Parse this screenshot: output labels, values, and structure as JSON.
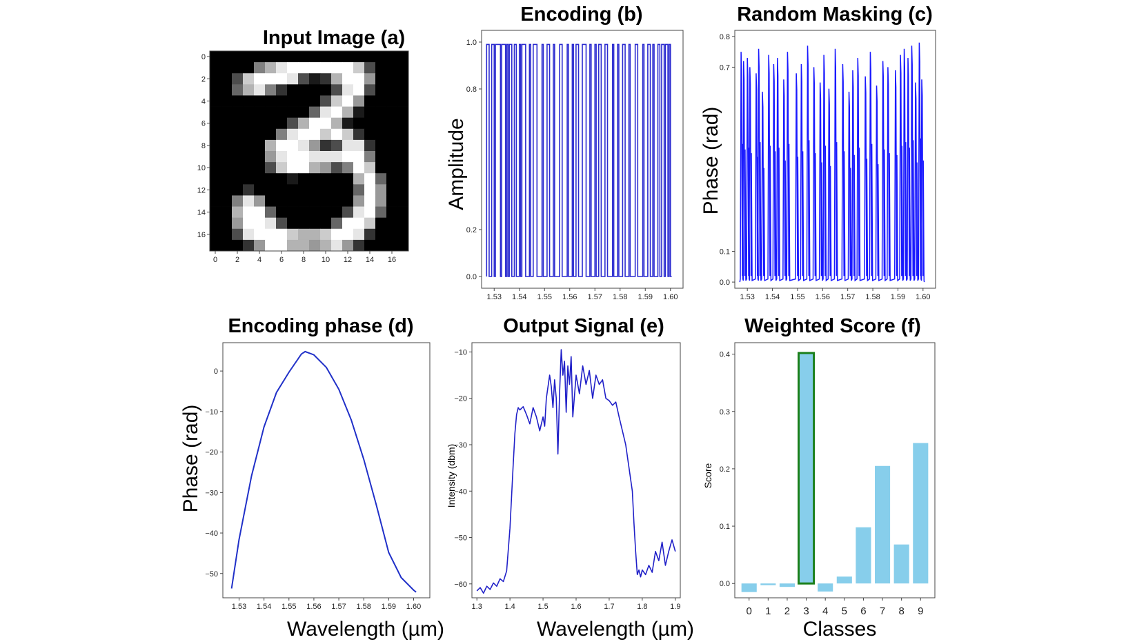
{
  "chart_data": [
    {
      "id": "a",
      "type": "heatmap",
      "title": "Input Image (a)",
      "colormap": "gray",
      "xticks": [
        "0",
        "2",
        "4",
        "6",
        "8",
        "10",
        "12",
        "14",
        "16"
      ],
      "yticks": [
        "0",
        "2",
        "4",
        "6",
        "8",
        "10",
        "12",
        "14",
        "16"
      ],
      "pixels": [
        [
          0,
          0,
          0,
          0,
          0,
          0,
          0,
          0,
          0,
          0,
          0,
          0,
          0,
          0,
          0,
          0,
          0,
          0
        ],
        [
          0,
          0,
          0,
          0,
          0.5,
          0.7,
          0.9,
          1,
          1,
          1,
          1,
          1,
          1,
          0.8,
          0.3,
          0,
          0,
          0
        ],
        [
          0,
          0,
          0.3,
          0.8,
          1,
          1,
          1,
          0.9,
          0.3,
          0.1,
          0.2,
          0.7,
          1,
          1,
          0.6,
          0,
          0,
          0
        ],
        [
          0,
          0,
          0.4,
          0.7,
          0.9,
          0.5,
          0.2,
          0,
          0,
          0,
          0,
          0.3,
          0.9,
          1,
          0.3,
          0,
          0,
          0
        ],
        [
          0,
          0,
          0,
          0,
          0,
          0,
          0,
          0,
          0,
          0,
          0.3,
          0.8,
          1,
          0.6,
          0,
          0,
          0,
          0
        ],
        [
          0,
          0,
          0,
          0,
          0,
          0,
          0,
          0,
          0,
          0.4,
          0.9,
          1,
          0.7,
          0.1,
          0,
          0,
          0,
          0
        ],
        [
          0,
          0,
          0,
          0,
          0,
          0,
          0,
          0.3,
          0.7,
          1,
          1,
          0.7,
          0.1,
          0,
          0,
          0,
          0,
          0
        ],
        [
          0,
          0,
          0,
          0,
          0,
          0,
          0.5,
          0.9,
          1,
          1,
          0.8,
          1,
          0.8,
          0.2,
          0,
          0,
          0,
          0
        ],
        [
          0,
          0,
          0,
          0,
          0,
          0.7,
          1,
          1,
          0.9,
          0.6,
          0.2,
          0.3,
          0.9,
          0.9,
          0.2,
          0,
          0,
          0
        ],
        [
          0,
          0,
          0,
          0,
          0,
          0.6,
          0.9,
          1,
          1,
          0.9,
          0.9,
          0.9,
          1,
          1,
          0.5,
          0,
          0,
          0
        ],
        [
          0,
          0,
          0,
          0,
          0,
          0.3,
          0.8,
          1,
          1,
          0.7,
          0.6,
          0.3,
          0.5,
          1,
          0.8,
          0,
          0,
          0
        ],
        [
          0,
          0,
          0,
          0,
          0,
          0,
          0,
          0.1,
          0,
          0,
          0,
          0,
          0,
          0.7,
          1,
          0.4,
          0,
          0
        ],
        [
          0,
          0,
          0,
          0.2,
          0,
          0,
          0,
          0,
          0,
          0,
          0,
          0,
          0,
          0.4,
          1,
          0.6,
          0,
          0
        ],
        [
          0,
          0,
          0.5,
          0.9,
          0.6,
          0,
          0,
          0,
          0,
          0,
          0,
          0,
          0,
          0.6,
          1,
          0.6,
          0,
          0
        ],
        [
          0,
          0,
          0.7,
          1,
          1,
          0.4,
          0,
          0,
          0,
          0,
          0,
          0,
          0.3,
          0.9,
          1,
          0.4,
          0,
          0
        ],
        [
          0,
          0,
          0.6,
          1,
          1,
          0.9,
          0.3,
          0,
          0,
          0,
          0,
          0.4,
          1,
          1,
          0.8,
          0,
          0,
          0
        ],
        [
          0,
          0,
          0.3,
          0.9,
          1,
          1,
          1,
          0.8,
          0.7,
          0.7,
          0.8,
          1,
          1,
          0.9,
          0.2,
          0,
          0,
          0
        ],
        [
          0,
          0,
          0,
          0.2,
          0.6,
          1,
          1,
          0.7,
          0.7,
          0.6,
          0.7,
          0.9,
          0.6,
          0.2,
          0,
          0,
          0,
          0
        ]
      ]
    },
    {
      "id": "b",
      "type": "line",
      "title": "Encoding (b)",
      "ylabel": "Amplitude",
      "xlim": [
        1.525,
        1.605
      ],
      "ylim": [
        -0.05,
        1.05
      ],
      "xticks": [
        "1.53",
        "1.54",
        "1.55",
        "1.56",
        "1.57",
        "1.58",
        "1.59",
        "1.60"
      ],
      "yticks": [
        "0.0",
        "0.2",
        "0.8",
        "1.0"
      ],
      "color": "#2b2bd0",
      "pulses": [
        [
          1.527,
          1.528
        ],
        [
          1.529,
          1.53
        ],
        [
          1.5305,
          1.5325
        ],
        [
          1.533,
          1.5345
        ],
        [
          1.535,
          1.5355
        ],
        [
          1.536,
          1.537
        ],
        [
          1.538,
          1.5388
        ],
        [
          1.54,
          1.5405
        ],
        [
          1.541,
          1.5425
        ],
        [
          1.544,
          1.5445
        ],
        [
          1.5455,
          1.547
        ],
        [
          1.549,
          1.5495
        ],
        [
          1.551,
          1.552
        ],
        [
          1.5535,
          1.554
        ],
        [
          1.556,
          1.557
        ],
        [
          1.559,
          1.5595
        ],
        [
          1.561,
          1.5615
        ],
        [
          1.5625,
          1.5635
        ],
        [
          1.565,
          1.5665
        ],
        [
          1.568,
          1.5685
        ],
        [
          1.57,
          1.5705
        ],
        [
          1.5715,
          1.5725
        ],
        [
          1.574,
          1.575
        ],
        [
          1.577,
          1.5775
        ],
        [
          1.579,
          1.5795
        ],
        [
          1.581,
          1.582
        ],
        [
          1.5835,
          1.584
        ],
        [
          1.586,
          1.587
        ],
        [
          1.589,
          1.5895
        ],
        [
          1.591,
          1.592
        ],
        [
          1.593,
          1.5935
        ],
        [
          1.595,
          1.5958
        ],
        [
          1.5965,
          1.5975
        ],
        [
          1.598,
          1.599
        ],
        [
          1.5995,
          1.6
        ]
      ]
    },
    {
      "id": "c",
      "type": "line",
      "title": "Random Masking (c)",
      "ylabel": "Phase (rad)",
      "xlim": [
        1.525,
        1.605
      ],
      "ylim": [
        -0.02,
        0.82
      ],
      "xticks": [
        "1.53",
        "1.54",
        "1.55",
        "1.56",
        "1.57",
        "1.58",
        "1.59",
        "1.60"
      ],
      "yticks": [
        "0.0",
        "0.1",
        "0.7",
        "0.8"
      ],
      "color": "#1a1aff",
      "spikes": [
        [
          1.5275,
          0.75
        ],
        [
          1.5285,
          0.72
        ],
        [
          1.53,
          0.73
        ],
        [
          1.531,
          0.7
        ],
        [
          1.5335,
          0.68
        ],
        [
          1.5345,
          0.76
        ],
        [
          1.536,
          0.62
        ],
        [
          1.5385,
          0.74
        ],
        [
          1.5405,
          0.71
        ],
        [
          1.542,
          0.73
        ],
        [
          1.5445,
          0.66
        ],
        [
          1.546,
          0.75
        ],
        [
          1.5495,
          0.68
        ],
        [
          1.5515,
          0.71
        ],
        [
          1.554,
          0.77
        ],
        [
          1.5565,
          0.7
        ],
        [
          1.559,
          0.65
        ],
        [
          1.5605,
          0.74
        ],
        [
          1.5625,
          0.63
        ],
        [
          1.565,
          0.76
        ],
        [
          1.568,
          0.71
        ],
        [
          1.5705,
          0.62
        ],
        [
          1.572,
          0.69
        ],
        [
          1.574,
          0.73
        ],
        [
          1.577,
          0.67
        ],
        [
          1.579,
          0.75
        ],
        [
          1.5815,
          0.64
        ],
        [
          1.584,
          0.72
        ],
        [
          1.586,
          0.7
        ],
        [
          1.589,
          0.69
        ],
        [
          1.591,
          0.74
        ],
        [
          1.5925,
          0.76
        ],
        [
          1.594,
          0.73
        ],
        [
          1.5955,
          0.77
        ],
        [
          1.597,
          0.65
        ],
        [
          1.5985,
          0.78
        ],
        [
          1.5995,
          0.66
        ]
      ]
    },
    {
      "id": "d",
      "type": "line",
      "title": "Encoding phase (d)",
      "ylabel": "Phase (rad)",
      "xlabel": "Wavelength (µm)",
      "xlim": [
        1.5235,
        1.6065
      ],
      "ylim": [
        -56,
        7
      ],
      "xticks": [
        "1.53",
        "1.54",
        "1.55",
        "1.56",
        "1.57",
        "1.58",
        "1.59",
        "1.60"
      ],
      "yticks": [
        "0",
        "−10",
        "−20",
        "−30",
        "−40",
        "−50"
      ],
      "color": "#2030c8",
      "x": [
        1.527,
        1.53,
        1.535,
        1.54,
        1.545,
        1.55,
        1.555,
        1.5565,
        1.56,
        1.565,
        1.57,
        1.575,
        1.58,
        1.585,
        1.59,
        1.595,
        1.6,
        1.601
      ],
      "y": [
        -53.7,
        -41.6,
        -25.9,
        -13.8,
        -5.3,
        -0.3,
        4.2,
        4.8,
        4.0,
        0.9,
        -4.5,
        -12.1,
        -21.8,
        -33.0,
        -44.8,
        -51.0,
        -54.1,
        -54.6
      ]
    },
    {
      "id": "e",
      "type": "line",
      "title": "Output Signal (e)",
      "ylabel": "Intensity (dbm)",
      "xlabel": "Wavelength (µm)",
      "xlim": [
        1.285,
        1.915
      ],
      "ylim": [
        -63,
        -8
      ],
      "xticks": [
        "1.3",
        "1.4",
        "1.5",
        "1.6",
        "1.7",
        "1.8",
        "1.9"
      ],
      "yticks": [
        "−10",
        "−20",
        "−30",
        "−40",
        "−50",
        "−60"
      ],
      "color": "#2020c8",
      "x": [
        1.3,
        1.31,
        1.32,
        1.33,
        1.34,
        1.35,
        1.36,
        1.37,
        1.38,
        1.39,
        1.4,
        1.405,
        1.41,
        1.415,
        1.42,
        1.425,
        1.43,
        1.44,
        1.45,
        1.46,
        1.47,
        1.48,
        1.49,
        1.5,
        1.505,
        1.51,
        1.52,
        1.525,
        1.53,
        1.535,
        1.54,
        1.545,
        1.55,
        1.555,
        1.56,
        1.565,
        1.57,
        1.575,
        1.58,
        1.585,
        1.59,
        1.6,
        1.61,
        1.62,
        1.63,
        1.64,
        1.65,
        1.66,
        1.67,
        1.68,
        1.69,
        1.7,
        1.71,
        1.72,
        1.73,
        1.74,
        1.75,
        1.76,
        1.77,
        1.775,
        1.78,
        1.785,
        1.79,
        1.795,
        1.8,
        1.81,
        1.82,
        1.83,
        1.84,
        1.85,
        1.86,
        1.87,
        1.88,
        1.89,
        1.9
      ],
      "y": [
        -61.5,
        -60.8,
        -62.0,
        -60.5,
        -61.2,
        -59.8,
        -60.5,
        -58.9,
        -59.5,
        -57.2,
        -48.0,
        -41.0,
        -34.0,
        -27.5,
        -23.5,
        -22.0,
        -22.5,
        -21.8,
        -23.5,
        -25.5,
        -22.0,
        -24.0,
        -27.0,
        -24.0,
        -26.0,
        -20.0,
        -15.0,
        -17.5,
        -22.0,
        -16.0,
        -20.0,
        -32.0,
        -19.0,
        -9.5,
        -15.0,
        -12.0,
        -23.0,
        -13.0,
        -17.0,
        -11.0,
        -24.0,
        -15.0,
        -19.0,
        -13.0,
        -17.0,
        -14.0,
        -20.0,
        -15.0,
        -17.0,
        -16.0,
        -20.0,
        -20.5,
        -21.5,
        -20.8,
        -24.0,
        -27.0,
        -30.0,
        -35.0,
        -40.0,
        -47.0,
        -53.0,
        -58.0,
        -57.0,
        -58.5,
        -57.0,
        -58.0,
        -56.0,
        -57.5,
        -53.0,
        -55.0,
        -51.0,
        -56.0,
        -53.0,
        -50.5,
        -53.0
      ]
    },
    {
      "id": "f",
      "type": "bar",
      "title": "Weighted Score (f)",
      "ylabel": "Score",
      "xlabel": "Classes",
      "ylim": [
        -0.025,
        0.42
      ],
      "categories": [
        "0",
        "1",
        "2",
        "3",
        "4",
        "5",
        "6",
        "7",
        "8",
        "9"
      ],
      "yticks": [
        "0.0",
        "0.1",
        "0.2",
        "0.3",
        "0.4"
      ],
      "values": [
        -0.015,
        -0.003,
        -0.006,
        0.402,
        -0.014,
        0.012,
        0.098,
        0.205,
        0.068,
        0.245
      ],
      "highlight_index": 3,
      "color": "#87ceeb",
      "highlight_color": "#1a7f1a"
    }
  ]
}
